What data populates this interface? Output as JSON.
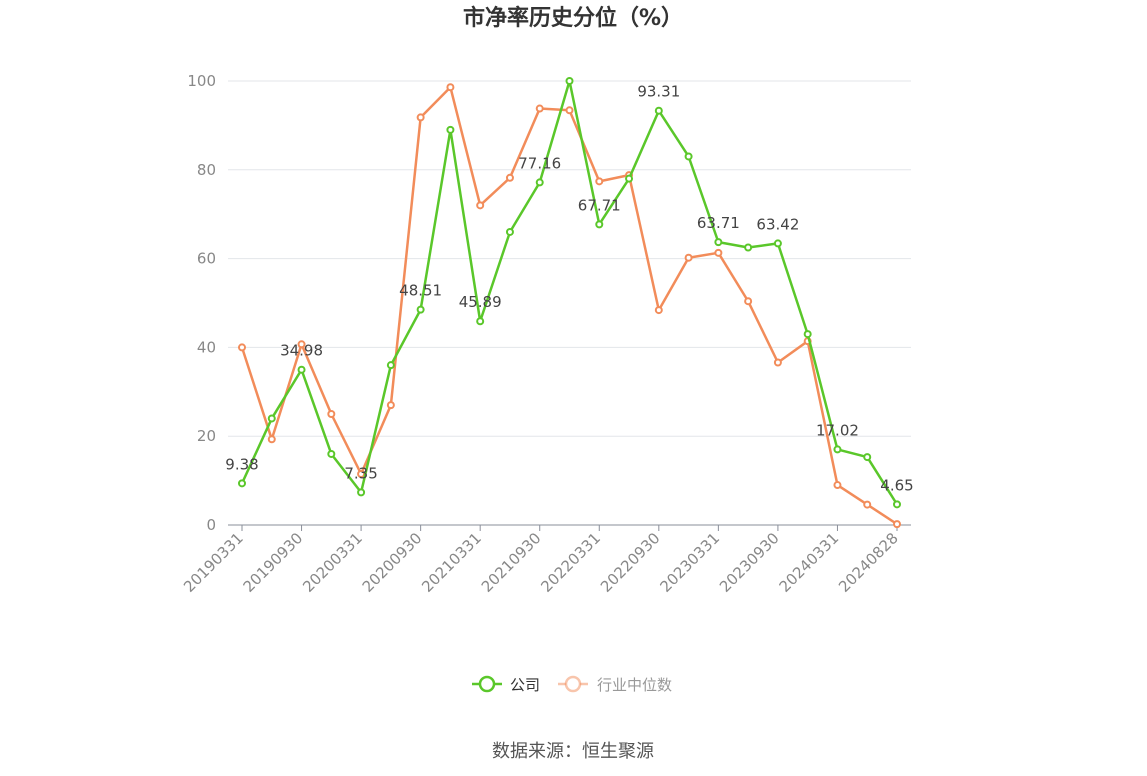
{
  "chart_data": {
    "type": "line",
    "title": "市净率历史分位（%）",
    "xlabel": "",
    "ylabel": "",
    "ylim": [
      0,
      100
    ],
    "yticks": [
      0,
      20,
      40,
      60,
      80,
      100
    ],
    "grid": true,
    "legend_position": "bottom",
    "x": [
      "20190331",
      "20190630",
      "20190930",
      "20191231",
      "20200331",
      "20200630",
      "20200930",
      "20201231",
      "20210331",
      "20210630",
      "20210930",
      "20211231",
      "20220331",
      "20220630",
      "20220930",
      "20221231",
      "20230331",
      "20230630",
      "20230930",
      "20231231",
      "20240331",
      "20240630",
      "20240828"
    ],
    "x_tick_labels": [
      "20190331",
      "20190930",
      "20200331",
      "20200930",
      "20210331",
      "20210930",
      "20220331",
      "20220930",
      "20230331",
      "20230930",
      "20240331",
      "20240828"
    ],
    "series": [
      {
        "name": "公司",
        "color": "#5ac72a",
        "values": [
          9.38,
          24,
          34.98,
          16,
          7.35,
          36,
          48.51,
          89,
          45.89,
          66,
          77.16,
          100,
          67.71,
          78,
          93.31,
          83,
          63.71,
          62.5,
          63.42,
          43,
          17.02,
          15.3,
          4.65
        ],
        "labels": {
          "0": "9.38",
          "2": "34.98",
          "4": "7.35",
          "6": "48.51",
          "8": "45.89",
          "10": "77.16",
          "12": "67.71",
          "14": "93.31",
          "16": "63.71",
          "18": "63.42",
          "20": "17.02",
          "22": "4.65"
        }
      },
      {
        "name": "行业中位数",
        "color": "#f28c5a",
        "values": [
          40,
          19.3,
          40.7,
          25,
          11.5,
          27,
          91.8,
          98.6,
          72,
          78.2,
          93.8,
          93.4,
          77.4,
          78.8,
          48.4,
          60.2,
          61.3,
          50.4,
          36.6,
          41.4,
          9,
          4.6,
          0.2
        ]
      }
    ]
  },
  "source": "数据来源：恒生聚源"
}
